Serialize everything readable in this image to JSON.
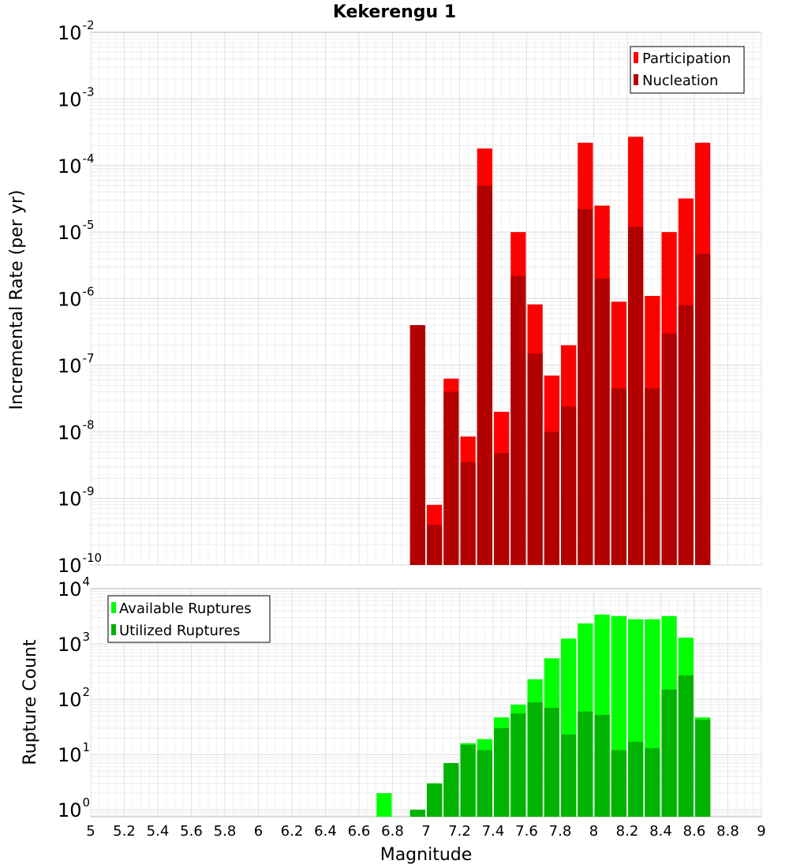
{
  "chart_data": [
    {
      "type": "bar",
      "title": "Kekerengu 1",
      "ylabel": "Incremental Rate (per yr)",
      "xlabel": "",
      "yscale": "log",
      "ylim": [
        1e-10,
        0.01
      ],
      "xlim": [
        5,
        9
      ],
      "y_tick_exponents": [
        -2,
        -3,
        -4,
        -5,
        -6,
        -7,
        -8,
        -9,
        -10
      ],
      "grid": true,
      "legend_position": "top-right",
      "x": [
        6.95,
        7.05,
        7.15,
        7.25,
        7.35,
        7.45,
        7.55,
        7.65,
        7.75,
        7.85,
        7.95,
        8.05,
        8.15,
        8.25,
        8.35,
        8.45,
        8.55,
        8.65
      ],
      "series": [
        {
          "name": "Participation",
          "color": "#ff0000",
          "values": [
            4e-07,
            8e-10,
            6.3e-08,
            8.5e-09,
            0.00018,
            2e-08,
            1e-05,
            8.2e-07,
            7e-08,
            2e-07,
            0.00022,
            2.5e-05,
            9e-07,
            0.00027,
            1.1e-06,
            1e-05,
            3.2e-05,
            0.00022
          ]
        },
        {
          "name": "Nucleation",
          "color": "#b20000",
          "values": [
            4e-07,
            4e-10,
            4e-08,
            3.5e-09,
            5e-05,
            4.8e-09,
            2.2e-06,
            1.5e-07,
            1e-08,
            2.4e-08,
            2.2e-05,
            2e-06,
            4.5e-08,
            1.2e-05,
            4.5e-08,
            3e-07,
            8e-07,
            4.7e-06
          ]
        }
      ]
    },
    {
      "type": "bar",
      "title": "",
      "ylabel": "Rupture Count",
      "xlabel": "Magnitude",
      "yscale": "log",
      "ylim": [
        0.75,
        10000
      ],
      "xlim": [
        5,
        9
      ],
      "y_tick_exponents": [
        4,
        3,
        2,
        1,
        0
      ],
      "x_ticks": [
        "5",
        "5.2",
        "5.4",
        "5.6",
        "5.8",
        "6",
        "6.2",
        "6.4",
        "6.6",
        "6.8",
        "7",
        "7.2",
        "7.4",
        "7.6",
        "7.8",
        "8",
        "8.2",
        "8.4",
        "8.6",
        "8.8",
        "9"
      ],
      "grid": true,
      "legend_position": "top-left",
      "x": [
        6.75,
        6.95,
        7.05,
        7.15,
        7.25,
        7.35,
        7.45,
        7.55,
        7.65,
        7.75,
        7.85,
        7.95,
        8.05,
        8.15,
        8.25,
        8.35,
        8.45,
        8.55,
        8.65
      ],
      "series": [
        {
          "name": "Available Ruptures",
          "color": "#00ff00",
          "values": [
            2,
            1,
            3,
            7,
            16,
            19,
            47,
            80,
            230,
            550,
            1250,
            2350,
            3400,
            3200,
            2800,
            2800,
            3200,
            1300,
            47
          ]
        },
        {
          "name": "Utilized Ruptures",
          "color": "#00b300",
          "values": [
            0,
            1,
            3,
            7,
            15,
            12,
            30,
            55,
            88,
            70,
            23,
            60,
            52,
            12,
            17,
            13,
            150,
            270,
            43
          ]
        }
      ]
    }
  ]
}
